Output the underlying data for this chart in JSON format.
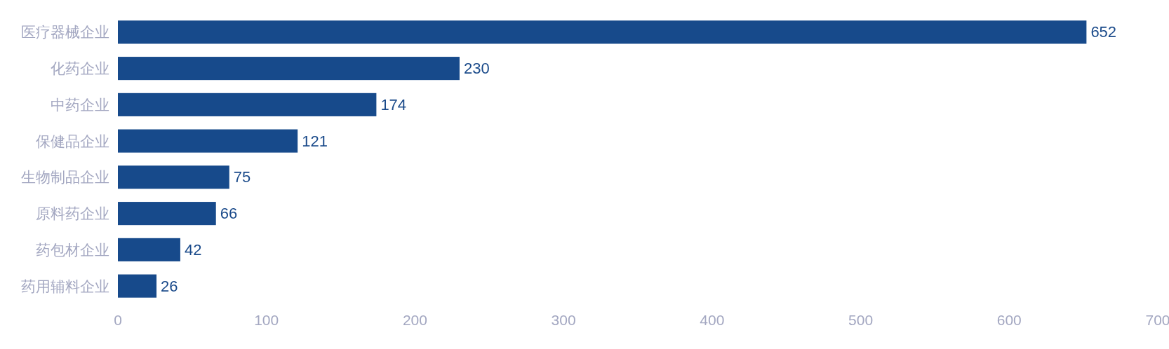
{
  "chart_data": {
    "type": "bar",
    "orientation": "horizontal",
    "categories": [
      "医疗器械企业",
      "化药企业",
      "中药企业",
      "保健品企业",
      "生物制品企业",
      "原料药企业",
      "药包材企业",
      "药用辅料企业"
    ],
    "values": [
      652,
      230,
      174,
      121,
      75,
      66,
      42,
      26
    ],
    "color": "#174a8b",
    "xlim": [
      0,
      700
    ],
    "xticks": [
      0,
      100,
      200,
      300,
      400,
      500,
      600,
      700
    ],
    "data_labels": true
  }
}
